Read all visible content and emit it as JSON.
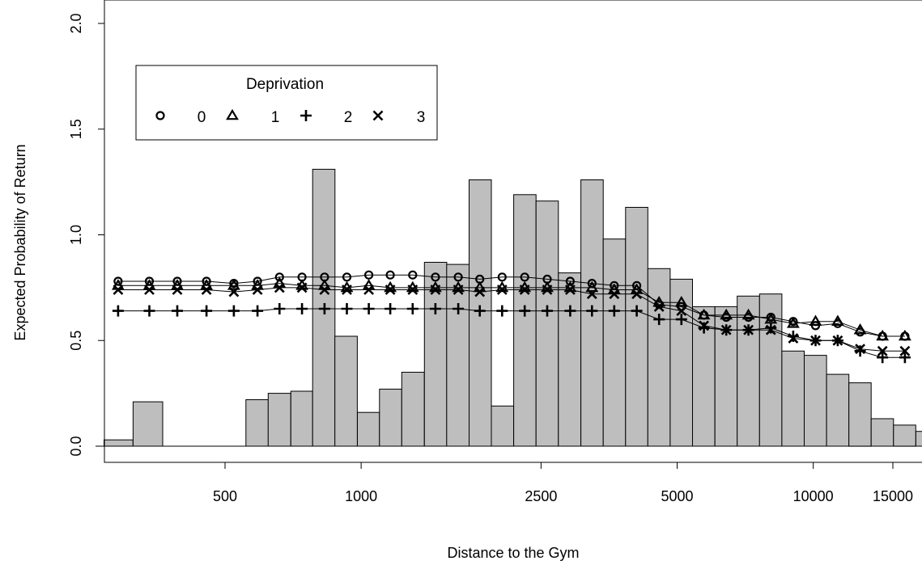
{
  "chart_data": {
    "type": "bar",
    "xlabel": "Distance to the Gym",
    "ylabel": "Expected Probability of Return",
    "x_scale": "log",
    "x_ticks": [
      500,
      1000,
      2500,
      5000,
      10000,
      15000
    ],
    "x_tick_labels": [
      "500",
      "1000",
      "2500",
      "5000",
      "10000",
      "15000"
    ],
    "y_ticks": [
      0.0,
      0.5,
      1.0,
      1.5,
      2.0
    ],
    "y_tick_labels": [
      "0.0",
      "0.5",
      "1.0",
      "1.5",
      "2.0"
    ],
    "ylim": [
      0,
      2.0
    ],
    "xlim": [
      240,
      17800
    ],
    "grid": false,
    "histogram": {
      "color": "#bebebe",
      "bins": [
        {
          "x0": 270,
          "x1": 313,
          "value": 0.03
        },
        {
          "x0": 313,
          "x1": 364,
          "value": 0.21
        },
        {
          "x0": 364,
          "x1": 422,
          "value": 0.0
        },
        {
          "x0": 422,
          "x1": 490,
          "value": 0.0
        },
        {
          "x0": 490,
          "x1": 556,
          "value": 0.0
        },
        {
          "x0": 556,
          "x1": 623,
          "value": 0.22
        },
        {
          "x0": 623,
          "x1": 699,
          "value": 0.25
        },
        {
          "x0": 699,
          "x1": 781,
          "value": 0.26
        },
        {
          "x0": 781,
          "x1": 875,
          "value": 1.31
        },
        {
          "x0": 875,
          "x1": 981,
          "value": 0.52
        },
        {
          "x0": 981,
          "x1": 1098,
          "value": 0.16
        },
        {
          "x0": 1098,
          "x1": 1230,
          "value": 0.27
        },
        {
          "x0": 1230,
          "x1": 1380,
          "value": 0.35
        },
        {
          "x0": 1380,
          "x1": 1546,
          "value": 0.87
        },
        {
          "x0": 1546,
          "x1": 1733,
          "value": 0.86
        },
        {
          "x0": 1733,
          "x1": 1941,
          "value": 1.26
        },
        {
          "x0": 1941,
          "x1": 2175,
          "value": 0.19
        },
        {
          "x0": 2175,
          "x1": 2437,
          "value": 1.19
        },
        {
          "x0": 2437,
          "x1": 2731,
          "value": 1.16
        },
        {
          "x0": 2731,
          "x1": 3062,
          "value": 0.82
        },
        {
          "x0": 3062,
          "x1": 3431,
          "value": 1.26
        },
        {
          "x0": 3431,
          "x1": 3845,
          "value": 0.98
        },
        {
          "x0": 3845,
          "x1": 4307,
          "value": 1.13
        },
        {
          "x0": 4307,
          "x1": 4826,
          "value": 0.84
        },
        {
          "x0": 4826,
          "x1": 5408,
          "value": 0.79
        },
        {
          "x0": 5408,
          "x1": 6060,
          "value": 0.66
        },
        {
          "x0": 6060,
          "x1": 6790,
          "value": 0.66
        },
        {
          "x0": 6790,
          "x1": 7607,
          "value": 0.71
        },
        {
          "x0": 7607,
          "x1": 8522,
          "value": 0.72
        },
        {
          "x0": 8522,
          "x1": 9549,
          "value": 0.45
        },
        {
          "x0": 9549,
          "x1": 10700,
          "value": 0.43
        },
        {
          "x0": 10700,
          "x1": 11990,
          "value": 0.34
        },
        {
          "x0": 11990,
          "x1": 13430,
          "value": 0.3
        },
        {
          "x0": 13430,
          "x1": 15050,
          "value": 0.13
        },
        {
          "x0": 15050,
          "x1": 16860,
          "value": 0.1
        },
        {
          "x0": 16860,
          "x1": 18890,
          "value": 0.07
        }
      ]
    },
    "series_x": [
      290,
      340,
      392,
      455,
      523,
      590,
      660,
      740,
      830,
      930,
      1040,
      1160,
      1300,
      1460,
      1640,
      1830,
      2050,
      2300,
      2580,
      2900,
      3240,
      3630,
      4070,
      4560,
      5110,
      5730,
      6420,
      7190,
      8060,
      9030,
      10120,
      11330,
      12700,
      14230,
      15950
    ],
    "legend": {
      "title": "Deprivation",
      "position": "top-left",
      "items": [
        {
          "label": "0",
          "marker": "circle"
        },
        {
          "label": "1",
          "marker": "triangle"
        },
        {
          "label": "2",
          "marker": "plus"
        },
        {
          "label": "3",
          "marker": "cross"
        }
      ]
    },
    "series": [
      {
        "name": "0",
        "marker": "circle",
        "values": [
          0.78,
          0.78,
          0.78,
          0.78,
          0.77,
          0.78,
          0.8,
          0.8,
          0.8,
          0.8,
          0.81,
          0.81,
          0.81,
          0.8,
          0.8,
          0.79,
          0.8,
          0.8,
          0.79,
          0.78,
          0.77,
          0.76,
          0.76,
          0.67,
          0.66,
          0.62,
          0.61,
          0.61,
          0.61,
          0.59,
          0.57,
          0.58,
          0.54,
          0.52,
          0.52
        ]
      },
      {
        "name": "1",
        "marker": "triangle",
        "values": [
          0.76,
          0.76,
          0.76,
          0.76,
          0.76,
          0.76,
          0.77,
          0.76,
          0.76,
          0.75,
          0.76,
          0.75,
          0.75,
          0.75,
          0.75,
          0.75,
          0.75,
          0.75,
          0.75,
          0.75,
          0.75,
          0.74,
          0.74,
          0.68,
          0.68,
          0.62,
          0.62,
          0.62,
          0.6,
          0.58,
          0.59,
          0.59,
          0.55,
          0.52,
          0.52
        ]
      },
      {
        "name": "2",
        "marker": "plus",
        "values": [
          0.64,
          0.64,
          0.64,
          0.64,
          0.64,
          0.64,
          0.65,
          0.65,
          0.65,
          0.65,
          0.65,
          0.65,
          0.65,
          0.65,
          0.65,
          0.64,
          0.64,
          0.64,
          0.64,
          0.64,
          0.64,
          0.64,
          0.64,
          0.6,
          0.6,
          0.56,
          0.55,
          0.55,
          0.56,
          0.52,
          0.5,
          0.5,
          0.45,
          0.42,
          0.42
        ]
      },
      {
        "name": "3",
        "marker": "cross",
        "values": [
          0.74,
          0.74,
          0.74,
          0.74,
          0.73,
          0.74,
          0.75,
          0.75,
          0.74,
          0.74,
          0.74,
          0.74,
          0.74,
          0.74,
          0.74,
          0.73,
          0.74,
          0.74,
          0.74,
          0.74,
          0.72,
          0.72,
          0.72,
          0.66,
          0.64,
          0.57,
          0.55,
          0.55,
          0.55,
          0.51,
          0.5,
          0.5,
          0.46,
          0.45,
          0.45
        ]
      }
    ]
  }
}
